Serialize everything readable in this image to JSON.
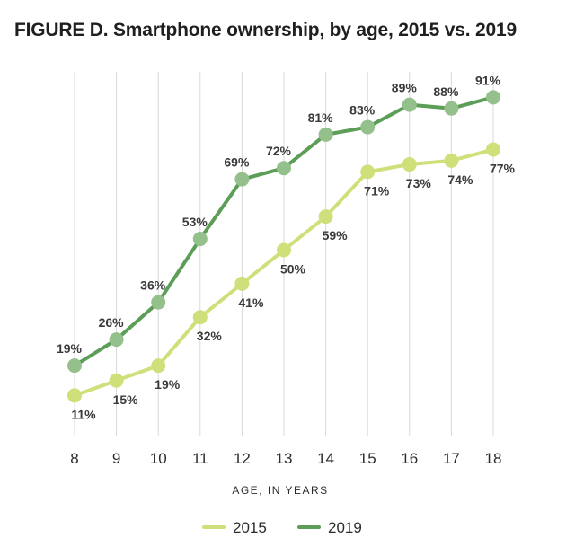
{
  "chart_data": {
    "type": "line",
    "title": "FIGURE D. Smartphone ownership, by age, 2015 vs. 2019",
    "xlabel": "AGE, IN YEARS",
    "ylabel": "",
    "x": [
      8,
      9,
      10,
      11,
      12,
      13,
      14,
      15,
      16,
      17,
      18
    ],
    "x_tick_labels": [
      "8",
      "9",
      "10",
      "11",
      "12",
      "13",
      "14",
      "15",
      "16",
      "17",
      "18"
    ],
    "ylim": [
      0,
      100
    ],
    "grid": "vertical",
    "legend_position": "bottom",
    "series": [
      {
        "name": "2015",
        "color": "#cfe07a",
        "values": [
          11,
          15,
          19,
          32,
          41,
          50,
          59,
          71,
          73,
          74,
          77
        ],
        "labels": [
          "11%",
          "15%",
          "19%",
          "32%",
          "41%",
          "50%",
          "59%",
          "71%",
          "73%",
          "74%",
          "77%"
        ],
        "label_placement": "below"
      },
      {
        "name": "2019",
        "color": "#5c9e57",
        "marker_color": "#93c08b",
        "values": [
          19,
          26,
          36,
          53,
          69,
          72,
          81,
          83,
          89,
          88,
          91
        ],
        "labels": [
          "19%",
          "26%",
          "36%",
          "53%",
          "69%",
          "72%",
          "81%",
          "83%",
          "89%",
          "88%",
          "91%"
        ],
        "label_placement": "above"
      }
    ]
  }
}
